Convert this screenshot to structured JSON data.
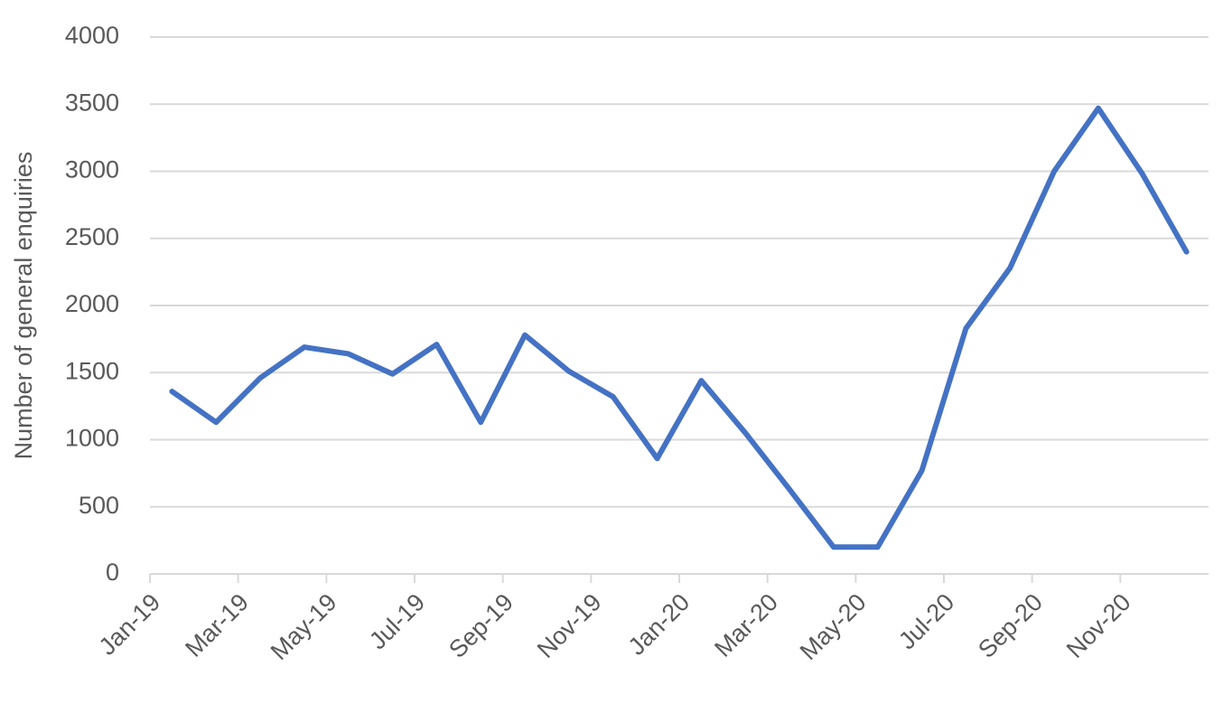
{
  "chart_data": {
    "type": "line",
    "y_label": "Number of general enquiries",
    "categories": [
      "Jan-19",
      null,
      "Mar-19",
      null,
      "May-19",
      null,
      "Jul-19",
      null,
      "Sep-19",
      null,
      "Nov-19",
      null,
      "Jan-20",
      null,
      "Mar-20",
      null,
      "May-20",
      null,
      "Jul-20",
      null,
      "Sep-20",
      null,
      "Nov-20",
      null
    ],
    "series": [
      {
        "name": "General enquiries",
        "color": "#4472c4",
        "values": [
          1360,
          1130,
          1460,
          1690,
          1640,
          1490,
          1710,
          1130,
          1780,
          1510,
          1320,
          860,
          1440,
          1050,
          630,
          200,
          200,
          770,
          1830,
          2280,
          3000,
          3470,
          2980,
          2400
        ]
      }
    ],
    "ylim": [
      0,
      4000
    ],
    "yticks": [
      0,
      500,
      1000,
      1500,
      2000,
      2500,
      3000,
      3500,
      4000
    ],
    "grid": true
  }
}
